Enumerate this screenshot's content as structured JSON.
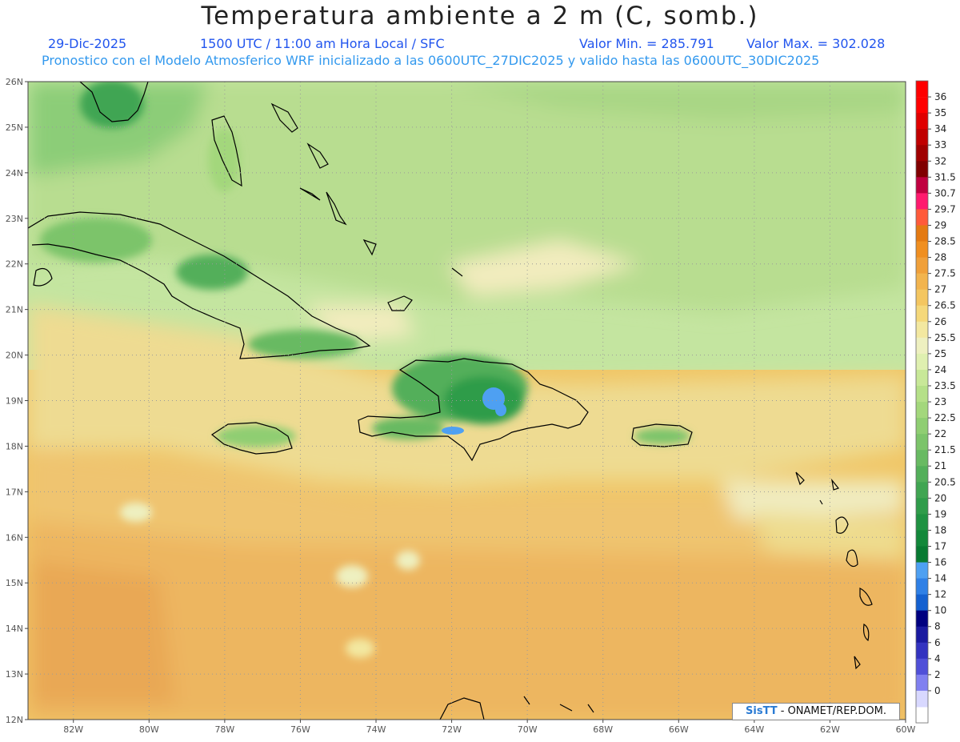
{
  "header": {
    "title": "Temperatura ambiente a 2 m (C, somb.)",
    "date": "29-Dic-2025",
    "time": "1500 UTC / 11:00 am Hora Local / SFC",
    "vmin": "Valor Min. = 285.791",
    "vmax": "Valor Max. = 302.028",
    "model_line": "Pronostico con el Modelo Atmosferico WRF inicializado a las 0600UTC_27DIC2025 y valido hasta las  0600UTC_30DIC2025"
  },
  "map": {
    "lon_range": [
      -83.2,
      -60
    ],
    "lat_range": [
      12,
      26
    ],
    "x_ticks": [
      "82W",
      "80W",
      "78W",
      "76W",
      "74W",
      "72W",
      "70W",
      "68W",
      "66W",
      "64W",
      "62W",
      "60W"
    ],
    "y_ticks": [
      "26N",
      "25N",
      "24N",
      "23N",
      "22N",
      "21N",
      "20N",
      "19N",
      "18N",
      "17N",
      "16N",
      "15N",
      "14N",
      "13N",
      "12N"
    ]
  },
  "colorbar": {
    "labels": [
      "36",
      "35",
      "34",
      "33",
      "32",
      "31.5",
      "30.7",
      "29.7",
      "29",
      "28.5",
      "28",
      "27.5",
      "27",
      "26.5",
      "26",
      "25.5",
      "25",
      "24",
      "23.5",
      "23",
      "22.5",
      "22",
      "21.5",
      "21",
      "20.5",
      "20",
      "19",
      "18",
      "17",
      "16",
      "14",
      "12",
      "10",
      "8",
      "6",
      "4",
      "2",
      "0"
    ],
    "colors": [
      "#ff0000",
      "#e00000",
      "#c00000",
      "#a00000",
      "#800000",
      "#c00040",
      "#ff1a6e",
      "#ff5a3a",
      "#e47a12",
      "#f08f20",
      "#f0a03a",
      "#f2b44e",
      "#f4c660",
      "#f5d87a",
      "#f3e8a0",
      "#eef0c0",
      "#dff0b0",
      "#c8e898",
      "#b5e088",
      "#a3d77c",
      "#8fce72",
      "#7cc46a",
      "#68ba62",
      "#53af5a",
      "#40a552",
      "#2f9c4a",
      "#1f9242",
      "#12883a",
      "#087a32",
      "#4ea0f2",
      "#2f80e6",
      "#1460d0",
      "#000080",
      "#1a1aa0",
      "#3333c0",
      "#5050d8",
      "#8080f0",
      "#d8d8ff"
    ],
    "top_color": "#ff0000"
  },
  "credit": {
    "logo": "SisTT",
    "text": "- ONAMET/REP.DOM."
  }
}
